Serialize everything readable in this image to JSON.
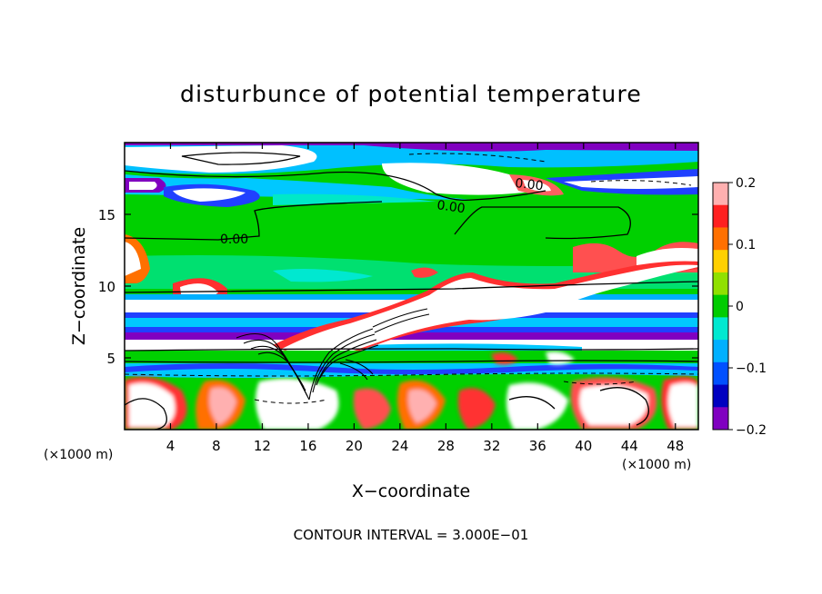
{
  "chart_data": {
    "type": "heatmap",
    "title": "disturbunce of potential temperature",
    "xlabel": "X−coordinate",
    "ylabel": "Z−coordinate",
    "x_unit": "(×1000 m)",
    "y_unit": "(×1000 m)",
    "xlim": [
      0,
      50
    ],
    "ylim": [
      0,
      20
    ],
    "x_ticks": [
      "4",
      "8",
      "12",
      "16",
      "20",
      "24",
      "28",
      "32",
      "36",
      "40",
      "44",
      "48"
    ],
    "y_ticks": [
      "5",
      "10",
      "15"
    ],
    "colorbar": {
      "range": [
        -0.2,
        0.2
      ],
      "ticks": [
        "0.2",
        "0.1",
        "0",
        "−0.1",
        "−0.2"
      ],
      "colors": [
        "#ffb0b0",
        "#ff2020",
        "#ff7000",
        "#ffd000",
        "#90e000",
        "#00cc00",
        "#00e8d0",
        "#00b0ff",
        "#0050ff",
        "#0000c0",
        "#8000c0"
      ]
    },
    "contour_labels": [
      "0.00",
      "0.00",
      "0.00"
    ],
    "footer": "CONTOUR INTERVAL = 3.000E−01",
    "grid": false
  }
}
